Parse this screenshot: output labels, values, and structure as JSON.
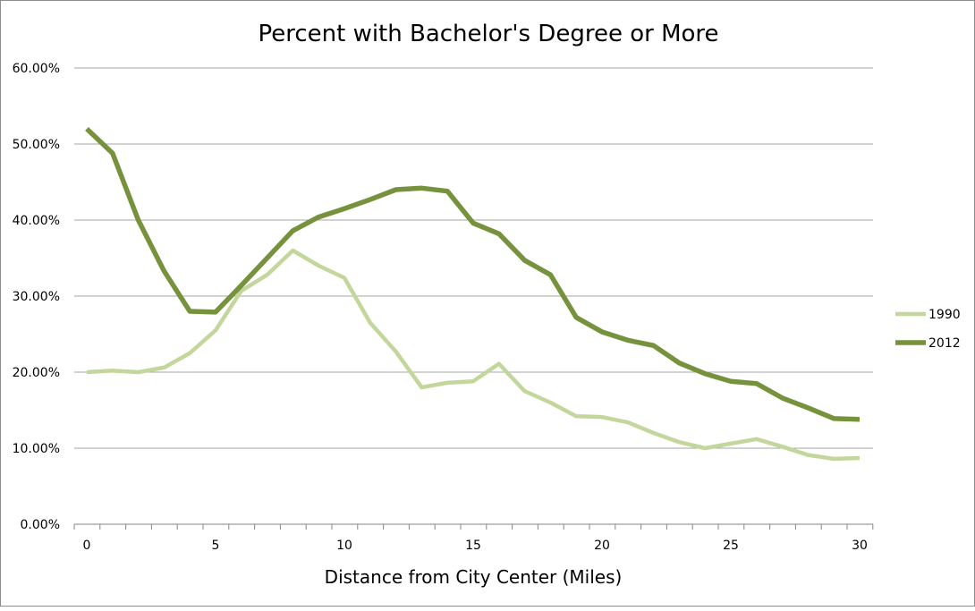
{
  "chart_data": {
    "type": "line",
    "title": "Percent with Bachelor's Degree or More",
    "xlabel": "Distance from City Center (Miles)",
    "ylabel": "",
    "xlim": [
      0,
      30
    ],
    "ylim": [
      0,
      60
    ],
    "grid": true,
    "legend_position": "right",
    "x_ticks": [
      "0",
      "5",
      "10",
      "15",
      "20",
      "25",
      "30"
    ],
    "y_ticks": [
      "0.00%",
      "10.00%",
      "20.00%",
      "30.00%",
      "40.00%",
      "50.00%",
      "60.00%"
    ],
    "x": [
      0,
      1,
      2,
      3,
      4,
      5,
      6,
      7,
      8,
      9,
      10,
      11,
      12,
      13,
      14,
      15,
      16,
      17,
      18,
      19,
      20,
      21,
      22,
      23,
      24,
      25,
      26,
      27,
      28,
      29,
      30
    ],
    "series": [
      {
        "name": "1990",
        "color": "#c3d69b",
        "values": [
          20.0,
          20.2,
          20.0,
          20.6,
          22.5,
          25.5,
          30.7,
          32.8,
          36.0,
          34.0,
          32.4,
          26.5,
          22.7,
          18.0,
          18.6,
          18.8,
          21.1,
          17.5,
          16.0,
          14.2,
          14.1,
          13.4,
          12.0,
          10.8,
          10.0,
          10.6,
          11.2,
          10.2,
          9.1,
          8.6,
          8.7
        ]
      },
      {
        "name": "2012",
        "color": "#76923c",
        "values": [
          52.0,
          48.8,
          40.0,
          33.3,
          28.0,
          27.9,
          31.4,
          35.0,
          38.6,
          40.4,
          41.5,
          42.7,
          44.0,
          44.2,
          43.8,
          39.6,
          38.2,
          34.7,
          32.8,
          27.2,
          25.3,
          24.2,
          23.5,
          21.2,
          19.8,
          18.8,
          18.5,
          16.6,
          15.3,
          13.9,
          13.8
        ]
      }
    ]
  }
}
